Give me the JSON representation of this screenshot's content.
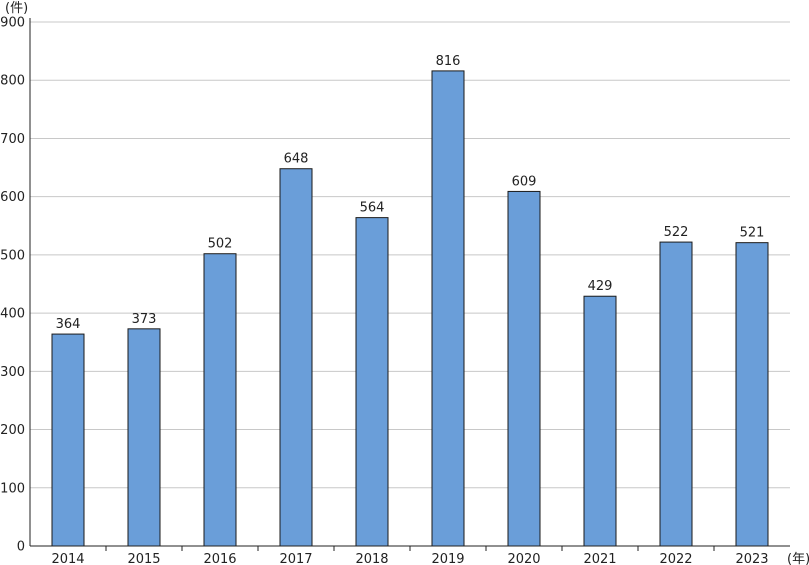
{
  "chart_data": {
    "type": "bar",
    "categories": [
      "2014",
      "2015",
      "2016",
      "2017",
      "2018",
      "2019",
      "2020",
      "2021",
      "2022",
      "2023"
    ],
    "values": [
      364,
      373,
      502,
      648,
      564,
      816,
      609,
      429,
      522,
      521
    ],
    "data_labels": [
      "364",
      "373",
      "502",
      "648",
      "564",
      "816",
      "609",
      "429",
      "522",
      "521"
    ],
    "title": "",
    "xlabel": "",
    "ylabel": "",
    "y_unit": "(件)",
    "x_unit": "(年)",
    "ylim": [
      0,
      900
    ],
    "yticks": [
      0,
      100,
      200,
      300,
      400,
      500,
      600,
      700,
      800,
      900
    ],
    "ytick_labels": [
      "0",
      "100",
      "200",
      "300",
      "400",
      "500",
      "600",
      "700",
      "800",
      "900"
    ],
    "grid": true,
    "colors": {
      "bar": "#6a9ed9",
      "bar_edge": "#1a1a1a",
      "grid": "#c8c8c8",
      "axis": "#222222"
    }
  }
}
